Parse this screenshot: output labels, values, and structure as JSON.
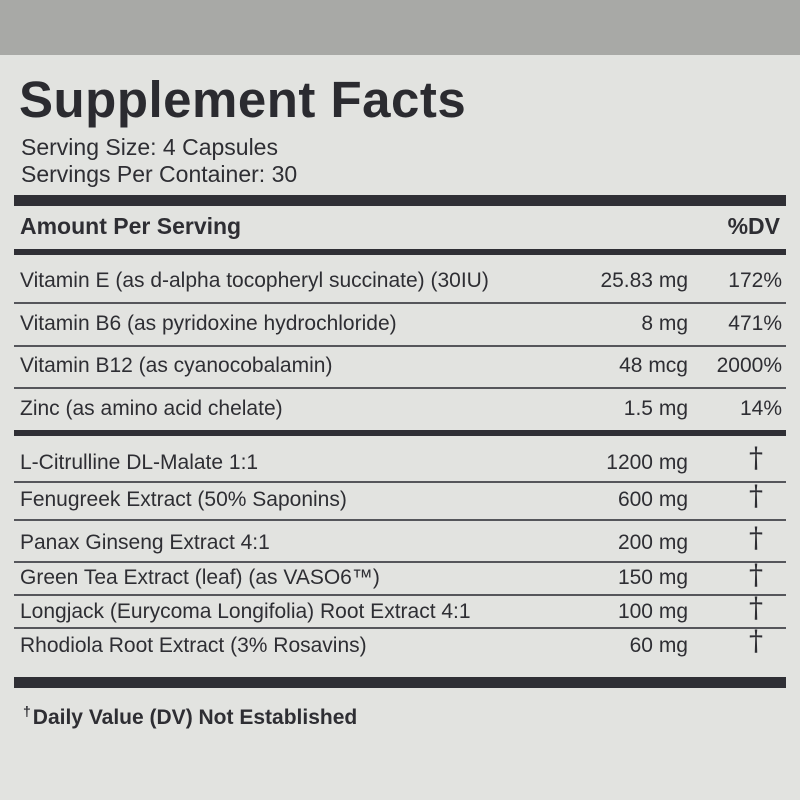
{
  "title": "Supplement Facts",
  "serving_size": "Serving Size:  4 Capsules",
  "servings_per_container": "Servings Per Container: 30",
  "header": {
    "amount": "Amount Per Serving",
    "dv": "%DV"
  },
  "vitamins": [
    {
      "name": "Vitamin E (as d-alpha tocopheryl succinate) (30IU)",
      "amount": "25.83 mg",
      "dv": "172%"
    },
    {
      "name": "Vitamin B6 (as pyridoxine hydrochloride)",
      "amount": "8 mg",
      "dv": "471%"
    },
    {
      "name": "Vitamin B12 (as cyanocobalamin)",
      "amount": "48 mcg",
      "dv": "2000%"
    },
    {
      "name": "Zinc (as amino acid chelate)",
      "amount": "1.5 mg",
      "dv": "14%"
    }
  ],
  "ingredients": [
    {
      "name": "L-Citrulline DL-Malate 1:1",
      "amount": "1200 mg",
      "dv": "†"
    },
    {
      "name": "Fenugreek Extract (50% Saponins)",
      "amount": "600 mg",
      "dv": "†"
    },
    {
      "name": "Panax Ginseng Extract 4:1",
      "amount": "200 mg",
      "dv": "†"
    },
    {
      "name": "Green Tea Extract (leaf) (as VASO6™)",
      "amount": "150 mg",
      "dv": "†"
    },
    {
      "name": "Longjack (Eurycoma Longifolia) Root Extract 4:1",
      "amount": "100 mg",
      "dv": "†"
    },
    {
      "name": "Rhodiola Root Extract (3% Rosavins)",
      "amount": "60 mg",
      "dv": "†"
    }
  ],
  "footnote": {
    "symbol": "†",
    "text": "Daily Value (DV) Not Established"
  },
  "colors": {
    "label_bg": "#e2e3e0",
    "ink": "#2e2e33",
    "outer_bg": "#a8a9a6"
  }
}
